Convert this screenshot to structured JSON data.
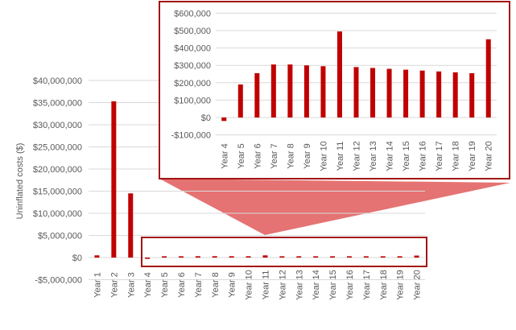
{
  "colors": {
    "bar": "#c00000",
    "frame": "#a31515",
    "callout": "#e57373",
    "grid": "#d9d9d9",
    "text": "#595959"
  },
  "chart_data": [
    {
      "id": "main",
      "type": "bar",
      "ylabel": "Uninflated costs ($)",
      "ylim": [
        -5000000,
        40000000
      ],
      "yticks": [
        -5000000,
        0,
        5000000,
        10000000,
        15000000,
        20000000,
        25000000,
        30000000,
        35000000,
        40000000
      ],
      "ytick_labels": [
        "-$5,000,000",
        "$0",
        "$5,000,000",
        "$10,000,000",
        "$15,000,000",
        "$20,000,000",
        "$25,000,000",
        "$30,000,000",
        "$35,000,000",
        "$40,000,000"
      ],
      "categories": [
        "Year 1",
        "Year 2",
        "Year 3",
        "Year 4",
        "Year 5",
        "Year 6",
        "Year 7",
        "Year 8",
        "Year 9",
        "Year 10",
        "Year 11",
        "Year 12",
        "Year 13",
        "Year 14",
        "Year 15",
        "Year 16",
        "Year 17",
        "Year 18",
        "Year 19",
        "Year 20"
      ],
      "values": [
        500000,
        35300000,
        14500000,
        -20000,
        190000,
        255000,
        305000,
        305000,
        300000,
        295000,
        495000,
        290000,
        285000,
        280000,
        275000,
        270000,
        265000,
        260000,
        255000,
        450000
      ],
      "grid": true
    },
    {
      "id": "inset",
      "type": "bar",
      "ylim": [
        -100000,
        600000
      ],
      "yticks": [
        -100000,
        0,
        100000,
        200000,
        300000,
        400000,
        500000,
        600000
      ],
      "ytick_labels": [
        "-$100,000",
        "$0",
        "$100,000",
        "$200,000",
        "$300,000",
        "$400,000",
        "$500,000",
        "$600,000"
      ],
      "categories": [
        "Year 4",
        "Year 5",
        "Year 6",
        "Year 7",
        "Year 8",
        "Year 9",
        "Year 10",
        "Year 11",
        "Year 12",
        "Year 13",
        "Year 14",
        "Year 15",
        "Year 16",
        "Year 17",
        "Year 18",
        "Year 19",
        "Year 20"
      ],
      "values": [
        -20000,
        190000,
        255000,
        305000,
        305000,
        300000,
        295000,
        495000,
        290000,
        285000,
        280000,
        275000,
        270000,
        265000,
        260000,
        255000,
        450000
      ],
      "grid": true
    }
  ]
}
